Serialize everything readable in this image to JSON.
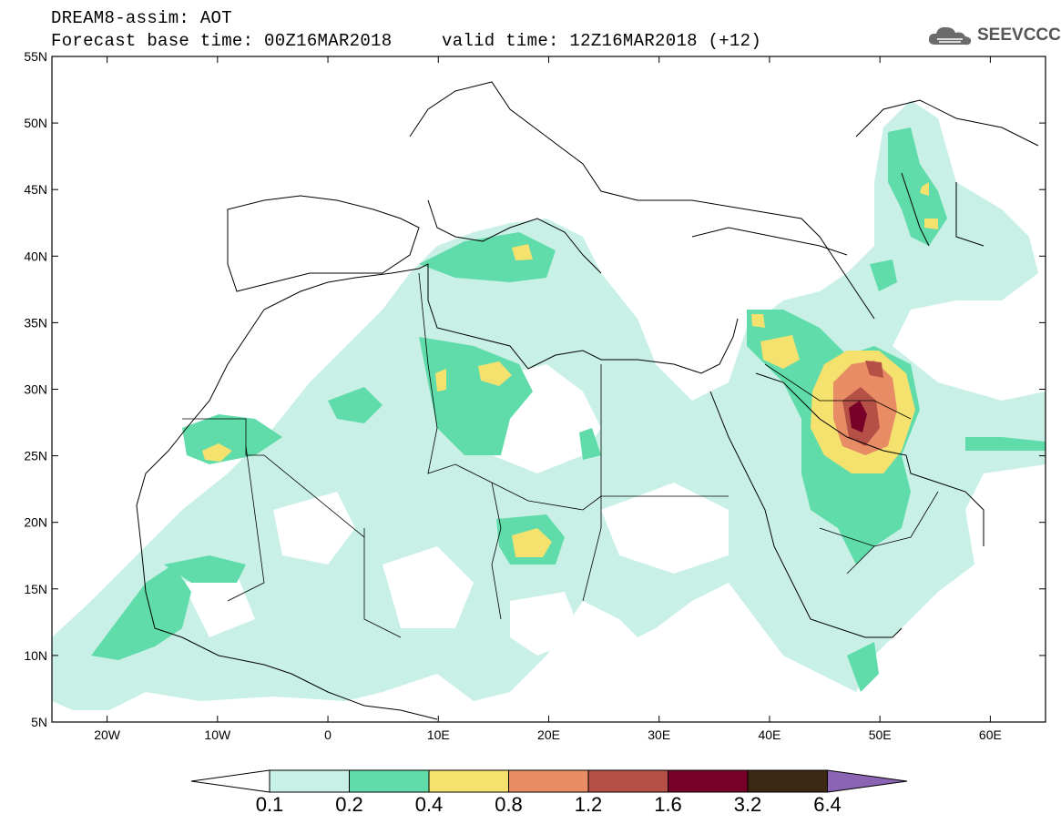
{
  "header": {
    "title": "DREAM8-assim: AOT",
    "base_time": "Forecast base time: 00Z16MAR2018",
    "valid_time": "valid time: 12Z16MAR2018 (+12)"
  },
  "logo": {
    "text": "SEEVCCC"
  },
  "map": {
    "lat_labels": [
      "55N",
      "50N",
      "45N",
      "40N",
      "35N",
      "30N",
      "25N",
      "20N",
      "15N",
      "10N",
      "5N"
    ],
    "lon_labels": [
      "20W",
      "10W",
      "0",
      "10E",
      "20E",
      "30E",
      "40E",
      "50E",
      "60E"
    ],
    "lon_range": [
      -25,
      65
    ],
    "lat_range": [
      5,
      55
    ]
  },
  "colorbar": {
    "labels": [
      "0.1",
      "0.2",
      "0.4",
      "0.8",
      "1.2",
      "1.6",
      "3.2",
      "6.4"
    ],
    "colors": [
      "#c8f0e6",
      "#5fdcaa",
      "#f4e16e",
      "#e78c64",
      "#b45046",
      "#780028",
      "#3c2814",
      "#8c64b4"
    ]
  }
}
